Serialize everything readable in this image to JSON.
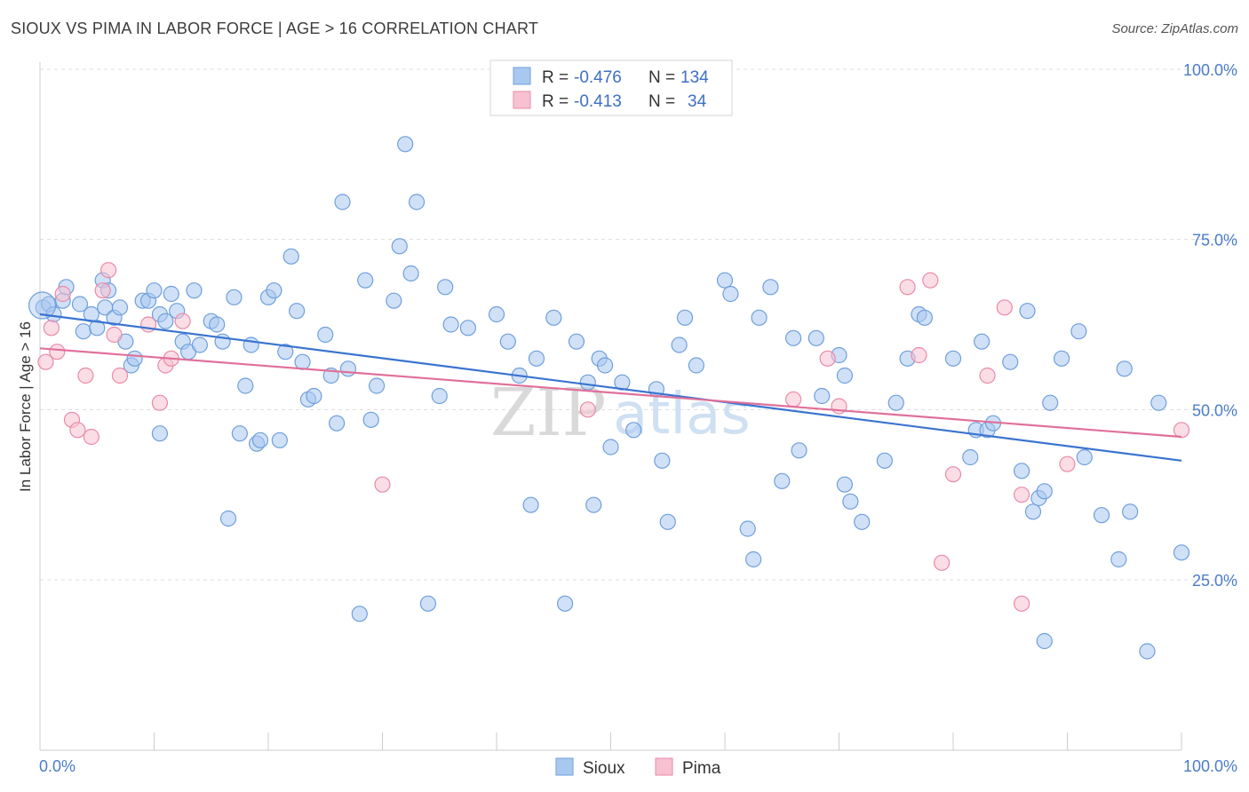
{
  "header": {
    "title": "SIOUX VS PIMA IN LABOR FORCE | AGE > 16 CORRELATION CHART",
    "source": "Source: ZipAtlas.com"
  },
  "watermark": {
    "part1": "ZIP",
    "part2": "atlas"
  },
  "legend_top": {
    "rows": [
      {
        "r_label": "R =",
        "r_value": "-0.476",
        "n_label": "N =",
        "n_value": "134",
        "color": "#a9c8f0",
        "stroke": "#6f9fdc"
      },
      {
        "r_label": "R =",
        "r_value": "-0.413",
        "n_label": "N =",
        "n_value": "34",
        "color": "#f7c1d2",
        "stroke": "#e98aa8"
      }
    ]
  },
  "chart_data": {
    "type": "scatter",
    "title": "SIOUX VS PIMA IN LABOR FORCE | AGE > 16 CORRELATION CHART",
    "xlabel": "",
    "ylabel": "In Labor Force | Age > 16",
    "xlim": [
      0,
      100
    ],
    "ylim": [
      0,
      105
    ],
    "x_tick_labels": [
      {
        "value": 0,
        "label": "0.0%"
      },
      {
        "value": 100,
        "label": "100.0%"
      }
    ],
    "y_tick_labels": [
      {
        "value": 25,
        "label": "25.0%"
      },
      {
        "value": 50,
        "label": "50.0%"
      },
      {
        "value": 75,
        "label": "75.0%"
      },
      {
        "value": 100,
        "label": "100.0%"
      }
    ],
    "grid": "horizontal dashed",
    "legend_position": "bottom-center",
    "series": [
      {
        "name": "Sioux",
        "color": "#a9c8f0",
        "stroke": "#6f9fdc",
        "line_color": "#3a74d0",
        "trend": {
          "x": [
            0,
            100
          ],
          "y": [
            64.0,
            42.5
          ]
        },
        "points": [
          [
            0.3,
            65
          ],
          [
            0.8,
            65.5
          ],
          [
            1.2,
            64
          ],
          [
            2,
            66
          ],
          [
            2.3,
            68
          ],
          [
            3.5,
            65.5
          ],
          [
            3.8,
            61.5
          ],
          [
            4.5,
            64
          ],
          [
            5,
            62
          ],
          [
            5.7,
            65
          ],
          [
            5.5,
            69
          ],
          [
            6,
            67.5
          ],
          [
            6.5,
            63.5
          ],
          [
            7,
            65
          ],
          [
            7.5,
            60
          ],
          [
            8,
            56.5
          ],
          [
            8.3,
            57.5
          ],
          [
            9,
            66
          ],
          [
            9.5,
            66
          ],
          [
            10,
            67.5
          ],
          [
            10.5,
            64
          ],
          [
            10.5,
            46.5
          ],
          [
            11,
            63
          ],
          [
            11.5,
            67
          ],
          [
            12,
            64.5
          ],
          [
            12.5,
            60
          ],
          [
            13,
            58.5
          ],
          [
            13.5,
            67.5
          ],
          [
            14,
            59.5
          ],
          [
            15,
            63
          ],
          [
            15.5,
            62.5
          ],
          [
            16,
            60
          ],
          [
            16.5,
            34
          ],
          [
            17,
            66.5
          ],
          [
            17.5,
            46.5
          ],
          [
            18,
            53.5
          ],
          [
            18.5,
            59.5
          ],
          [
            19,
            45
          ],
          [
            19.3,
            45.5
          ],
          [
            20,
            66.5
          ],
          [
            20.5,
            67.5
          ],
          [
            21,
            45.5
          ],
          [
            21.5,
            58.5
          ],
          [
            22,
            72.5
          ],
          [
            22.5,
            64.5
          ],
          [
            23,
            57
          ],
          [
            23.5,
            51.5
          ],
          [
            24,
            52
          ],
          [
            25,
            61
          ],
          [
            25.5,
            55
          ],
          [
            26,
            48
          ],
          [
            26.5,
            80.5
          ],
          [
            27,
            56
          ],
          [
            28,
            20
          ],
          [
            28.5,
            69
          ],
          [
            29,
            48.5
          ],
          [
            29.5,
            53.5
          ],
          [
            31,
            66
          ],
          [
            31.5,
            74
          ],
          [
            32,
            89
          ],
          [
            32.5,
            70
          ],
          [
            33,
            80.5
          ],
          [
            34,
            21.5
          ],
          [
            35,
            52
          ],
          [
            35.5,
            68
          ],
          [
            36,
            62.5
          ],
          [
            37.5,
            62
          ],
          [
            40,
            64
          ],
          [
            41,
            60
          ],
          [
            42,
            55
          ],
          [
            43,
            36
          ],
          [
            43.5,
            57.5
          ],
          [
            45,
            63.5
          ],
          [
            46,
            21.5
          ],
          [
            47,
            60
          ],
          [
            48,
            54
          ],
          [
            48.5,
            36
          ],
          [
            49,
            57.5
          ],
          [
            49.5,
            56.5
          ],
          [
            50,
            44.5
          ],
          [
            51,
            54
          ],
          [
            52,
            47
          ],
          [
            54,
            53
          ],
          [
            54.5,
            42.5
          ],
          [
            55,
            33.5
          ],
          [
            56,
            59.5
          ],
          [
            56.5,
            63.5
          ],
          [
            57.5,
            56.5
          ],
          [
            60,
            69
          ],
          [
            60.5,
            67
          ],
          [
            62,
            32.5
          ],
          [
            62.5,
            28
          ],
          [
            63,
            63.5
          ],
          [
            64,
            68
          ],
          [
            65,
            39.5
          ],
          [
            66,
            60.5
          ],
          [
            66.5,
            44
          ],
          [
            68,
            60.5
          ],
          [
            68.5,
            52
          ],
          [
            70,
            58
          ],
          [
            70.5,
            55
          ],
          [
            70.5,
            39
          ],
          [
            71,
            36.5
          ],
          [
            72,
            33.5
          ],
          [
            74,
            42.5
          ],
          [
            75,
            51
          ],
          [
            76,
            57.5
          ],
          [
            77,
            64
          ],
          [
            77.5,
            63.5
          ],
          [
            80,
            57.5
          ],
          [
            81.5,
            43
          ],
          [
            82,
            47
          ],
          [
            82.5,
            60
          ],
          [
            83,
            47
          ],
          [
            83.5,
            48
          ],
          [
            85,
            57
          ],
          [
            86,
            41
          ],
          [
            86.5,
            64.5
          ],
          [
            87,
            35
          ],
          [
            87.5,
            37
          ],
          [
            88,
            38
          ],
          [
            88,
            16
          ],
          [
            88.5,
            51
          ],
          [
            89.5,
            57.5
          ],
          [
            91,
            61.5
          ],
          [
            91.5,
            43
          ],
          [
            93,
            34.5
          ],
          [
            94.5,
            28
          ],
          [
            95,
            56
          ],
          [
            95.5,
            35
          ],
          [
            97,
            14.5
          ],
          [
            98,
            51
          ],
          [
            100,
            29
          ]
        ]
      },
      {
        "name": "Pima",
        "color": "#f7c1d2",
        "stroke": "#e98aa8",
        "line_color": "#e0709a",
        "trend": {
          "x": [
            0,
            100
          ],
          "y": [
            59.0,
            46.0
          ]
        },
        "points": [
          [
            0.5,
            57
          ],
          [
            1,
            62
          ],
          [
            1.5,
            58.5
          ],
          [
            2,
            67
          ],
          [
            2.8,
            48.5
          ],
          [
            3.3,
            47
          ],
          [
            4,
            55
          ],
          [
            4.5,
            46
          ],
          [
            5.5,
            67.5
          ],
          [
            6,
            70.5
          ],
          [
            6.5,
            61
          ],
          [
            7,
            55
          ],
          [
            9.5,
            62.5
          ],
          [
            10.5,
            51
          ],
          [
            11,
            56.5
          ],
          [
            11.5,
            57.5
          ],
          [
            12.5,
            63
          ],
          [
            30,
            39
          ],
          [
            48,
            50
          ],
          [
            66,
            51.5
          ],
          [
            69,
            57.5
          ],
          [
            70,
            50.5
          ],
          [
            76,
            68
          ],
          [
            77,
            58
          ],
          [
            78,
            69
          ],
          [
            79,
            27.5
          ],
          [
            80,
            40.5
          ],
          [
            83,
            55
          ],
          [
            84.5,
            65
          ],
          [
            86,
            37.5
          ],
          [
            86,
            21.5
          ],
          [
            90,
            42
          ],
          [
            100,
            47
          ]
        ]
      }
    ]
  }
}
